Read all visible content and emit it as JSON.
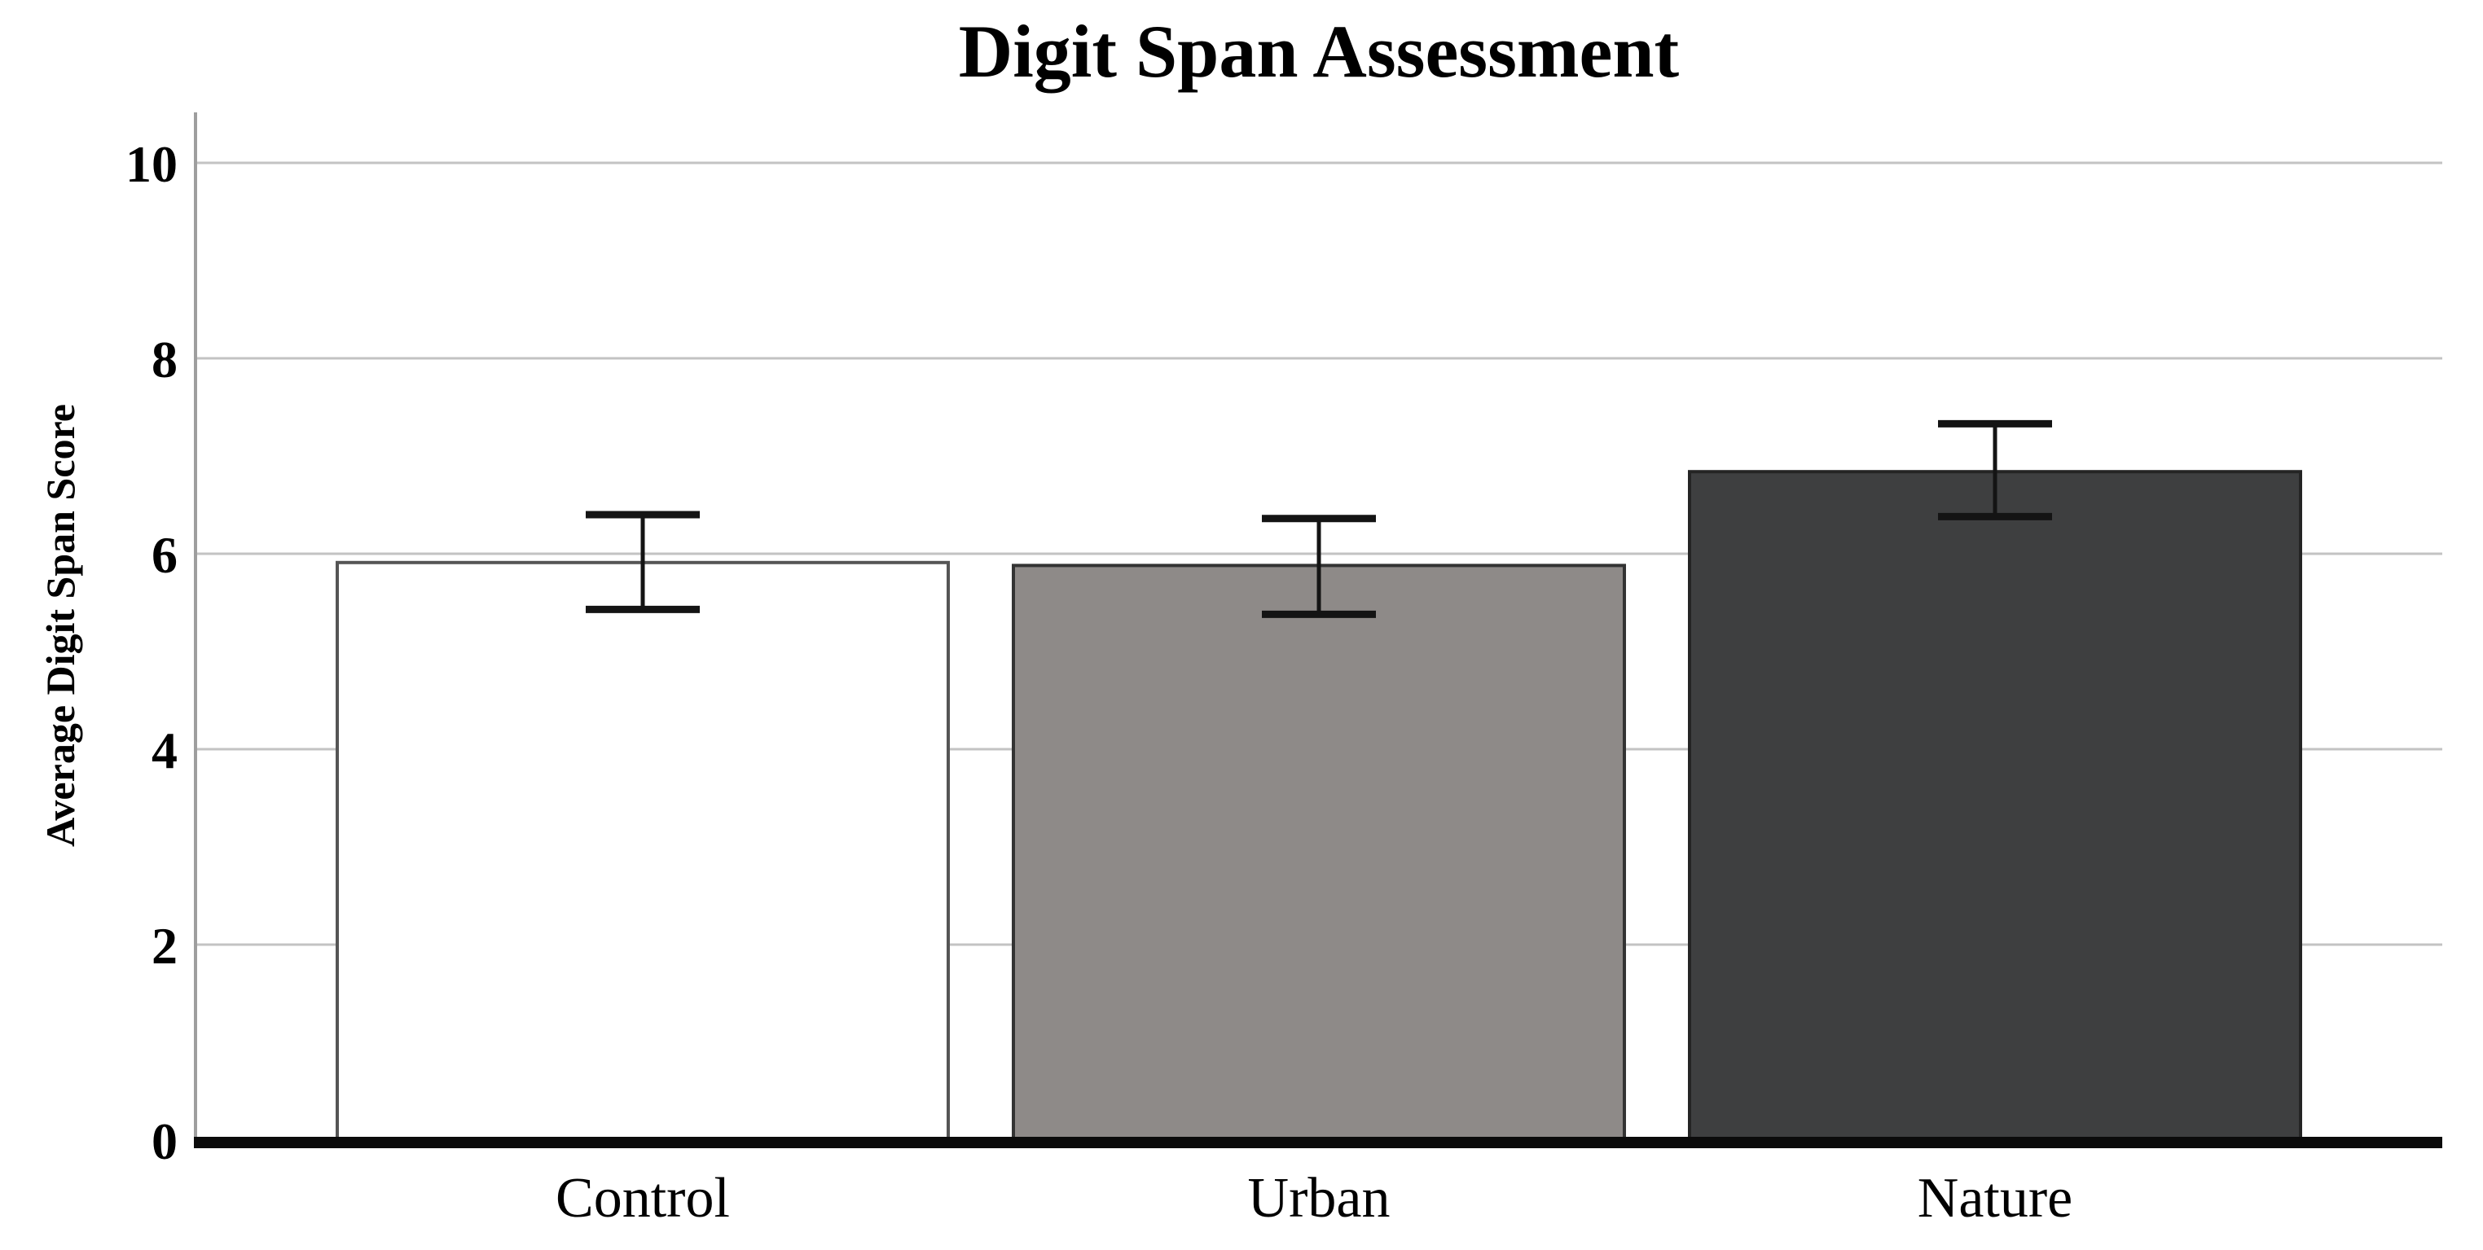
{
  "chart_data": {
    "type": "bar",
    "title": "Digit Span Assessment",
    "ylabel": "Average Digit Span Score",
    "xlabel": "",
    "categories": [
      "Control",
      "Urban",
      "Nature"
    ],
    "values": [
      5.91,
      5.88,
      6.84
    ],
    "error_bars": {
      "lower": [
        5.43,
        5.38,
        6.38
      ],
      "upper": [
        6.4,
        6.36,
        7.33
      ]
    },
    "yticks": [
      0,
      2,
      4,
      6,
      8,
      10
    ],
    "ylim": [
      0,
      10.5
    ],
    "grid": "horizontal",
    "legend_position": "none",
    "bar_fill_colors": [
      "#ffffff",
      "#8e8a88",
      "#3e3f40"
    ],
    "bar_border_colors": [
      "#555555",
      "#333333",
      "#242424"
    ],
    "gridline_color": "#c3c3c3",
    "y_axis_line_color": "#9e9e9e",
    "x_baseline_color": "#0b0b0b",
    "error_bar_color": "#141414",
    "text_color": "#000000",
    "background_color": "#ffffff"
  }
}
